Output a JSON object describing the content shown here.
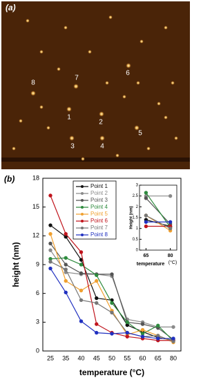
{
  "image": {
    "panel_label": "(a)",
    "labels": [
      "1",
      "2",
      "3",
      "4",
      "5",
      "6",
      "7",
      "8"
    ]
  },
  "chart_data": [
    {
      "type": "line",
      "panel_label": "(b)",
      "x_label": "temperature (°C)",
      "y_label": "height (nm)",
      "categories": [
        "25",
        "35",
        "40",
        "45",
        "50",
        "55",
        "60",
        "65",
        "80"
      ],
      "ylim": [
        0,
        18
      ],
      "yticks": [
        0,
        3,
        6,
        9,
        12,
        15,
        18
      ],
      "series": [
        {
          "name": "Point 1",
          "color": "#111111",
          "values": [
            13.1,
            11.9,
            9.5,
            5.5,
            5.3,
            2.7,
            2.0,
            1.4,
            1.1
          ]
        },
        {
          "name": "Point 2",
          "color": "#8a8a8a",
          "values": [
            10.5,
            8.2,
            8.0,
            8.0,
            7.8,
            3.3,
            3.0,
            2.5,
            2.5
          ]
        },
        {
          "name": "Point 3",
          "color": "#555555",
          "values": [
            11.2,
            9.0,
            8.1,
            8.0,
            8.0,
            3.0,
            2.8,
            2.4,
            1.2
          ]
        },
        {
          "name": "Point 4",
          "color": "#2e8b3e",
          "values": [
            9.6,
            9.7,
            9.0,
            7.9,
            5.0,
            3.0,
            1.8,
            2.65,
            1.05
          ]
        },
        {
          "name": "Point 5",
          "color": "#f0a030",
          "values": [
            12.2,
            7.3,
            6.3,
            7.3,
            4.2,
            1.7,
            2.2,
            1.6,
            0.9
          ]
        },
        {
          "name": "Point 6",
          "color": "#c0141c",
          "values": [
            16.2,
            12.2,
            10.3,
            2.8,
            1.9,
            1.5,
            1.3,
            1.1,
            1.1
          ]
        },
        {
          "name": "Point 7",
          "color": "#777777",
          "values": [
            9.3,
            8.5,
            5.3,
            5.0,
            4.0,
            1.9,
            1.5,
            1.6,
            1.0
          ]
        },
        {
          "name": "Point 8",
          "color": "#2030c0",
          "values": [
            8.6,
            6.1,
            3.1,
            1.9,
            1.8,
            1.9,
            1.5,
            1.3,
            1.3
          ]
        }
      ]
    },
    {
      "type": "line",
      "x_label": "temperature",
      "x_unit": "(°C)",
      "y_label": "Height (nm)",
      "x": [
        65,
        80
      ],
      "xlim": [
        61,
        84
      ],
      "xticks": [
        65,
        80
      ],
      "ylim": [
        0,
        3
      ],
      "yticks": [
        0,
        0.5,
        1,
        1.5,
        2,
        2.5,
        3
      ],
      "series": [
        {
          "name": "Point 1",
          "color": "#111111",
          "values": [
            1.4,
            1.1
          ]
        },
        {
          "name": "Point 2",
          "color": "#8a8a8a",
          "values": [
            2.5,
            2.5
          ]
        },
        {
          "name": "Point 3",
          "color": "#555555",
          "values": [
            2.4,
            1.2
          ]
        },
        {
          "name": "Point 4",
          "color": "#2e8b3e",
          "values": [
            2.65,
            1.05
          ]
        },
        {
          "name": "Point 5",
          "color": "#f0a030",
          "values": [
            1.6,
            0.9
          ]
        },
        {
          "name": "Point 6",
          "color": "#c0141c",
          "values": [
            1.1,
            1.1
          ]
        },
        {
          "name": "Point 7",
          "color": "#777777",
          "values": [
            1.6,
            1.0
          ]
        },
        {
          "name": "Point 8",
          "color": "#2030c0",
          "values": [
            1.3,
            1.3
          ]
        }
      ]
    }
  ]
}
